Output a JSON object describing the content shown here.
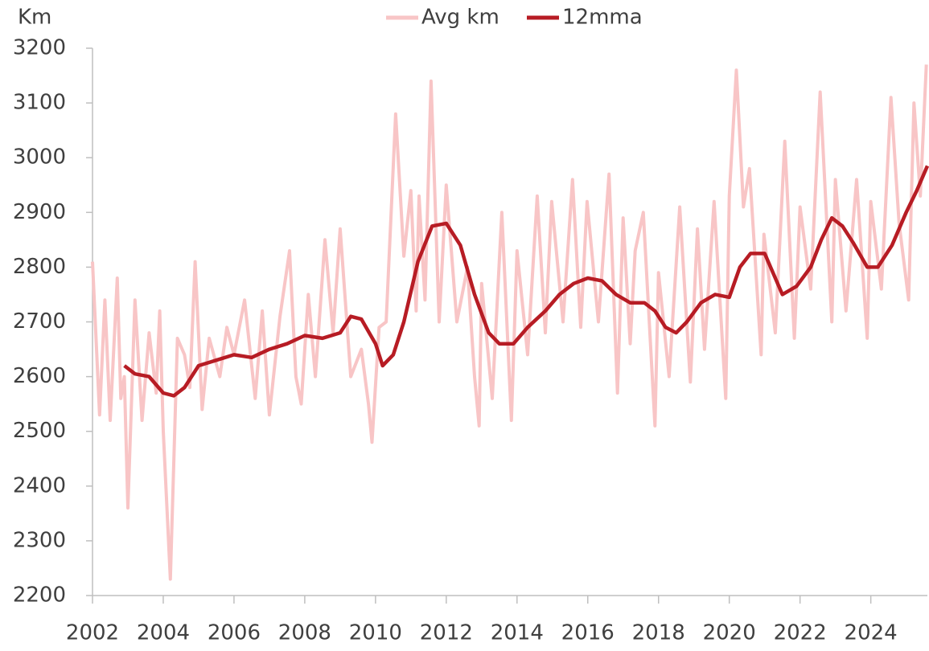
{
  "chart_data": {
    "type": "line",
    "y_label": "Km",
    "xlim": [
      2002,
      2025.6
    ],
    "xticks": [
      2002,
      2004,
      2006,
      2008,
      2010,
      2012,
      2014,
      2016,
      2018,
      2020,
      2022,
      2024
    ],
    "ylim": [
      2200,
      3200
    ],
    "yticks": [
      2200,
      2300,
      2400,
      2500,
      2600,
      2700,
      2800,
      2900,
      3000,
      3100,
      3200
    ],
    "legend": "top",
    "series": [
      {
        "name": "Avg km",
        "color": "#f8c5c6",
        "x": [
          2002.0,
          2002.2,
          2002.35,
          2002.5,
          2002.7,
          2002.8,
          2002.9,
          2003.0,
          2003.2,
          2003.4,
          2003.6,
          2003.8,
          2003.9,
          2004.0,
          2004.2,
          2004.4,
          2004.6,
          2004.75,
          2004.9,
          2005.1,
          2005.3,
          2005.6,
          2005.8,
          2006.0,
          2006.3,
          2006.6,
          2006.8,
          2007.0,
          2007.3,
          2007.57,
          2007.75,
          2007.9,
          2008.1,
          2008.3,
          2008.57,
          2008.8,
          2009.0,
          2009.3,
          2009.6,
          2009.8,
          2009.9,
          2010.1,
          2010.3,
          2010.57,
          2010.8,
          2011.0,
          2011.15,
          2011.23,
          2011.4,
          2011.57,
          2011.8,
          2012.0,
          2012.3,
          2012.6,
          2012.8,
          2012.93,
          2013.0,
          2013.3,
          2013.57,
          2013.84,
          2014.0,
          2014.3,
          2014.57,
          2014.8,
          2014.98,
          2015.3,
          2015.57,
          2015.8,
          2015.98,
          2016.3,
          2016.6,
          2016.84,
          2017.0,
          2017.2,
          2017.34,
          2017.57,
          2017.9,
          2018.0,
          2018.3,
          2018.6,
          2018.9,
          2019.1,
          2019.3,
          2019.57,
          2019.9,
          2020.0,
          2020.2,
          2020.4,
          2020.57,
          2020.9,
          2020.98,
          2021.3,
          2021.57,
          2021.84,
          2022.0,
          2022.3,
          2022.57,
          2022.9,
          2023.0,
          2023.3,
          2023.6,
          2023.9,
          2024.0,
          2024.3,
          2024.57,
          2024.8,
          2025.07,
          2025.22,
          2025.4,
          2025.57
        ],
        "values": [
          2810,
          2530,
          2740,
          2520,
          2780,
          2560,
          2600,
          2360,
          2740,
          2520,
          2680,
          2570,
          2720,
          2500,
          2230,
          2670,
          2640,
          2580,
          2810,
          2540,
          2670,
          2600,
          2690,
          2640,
          2740,
          2560,
          2720,
          2530,
          2710,
          2830,
          2600,
          2550,
          2750,
          2600,
          2850,
          2680,
          2870,
          2600,
          2650,
          2550,
          2480,
          2690,
          2700,
          3080,
          2820,
          2940,
          2720,
          2930,
          2740,
          3140,
          2700,
          2950,
          2700,
          2800,
          2600,
          2510,
          2770,
          2560,
          2900,
          2520,
          2830,
          2640,
          2930,
          2680,
          2920,
          2700,
          2960,
          2690,
          2920,
          2700,
          2970,
          2570,
          2890,
          2660,
          2830,
          2900,
          2510,
          2790,
          2600,
          2910,
          2590,
          2870,
          2650,
          2920,
          2560,
          2930,
          3160,
          2910,
          2980,
          2640,
          2860,
          2680,
          3030,
          2670,
          2910,
          2760,
          3120,
          2700,
          2960,
          2720,
          2960,
          2670,
          2920,
          2760,
          3110,
          2880,
          2740,
          3100,
          2930,
          3170
        ]
      },
      {
        "name": "12mma",
        "color": "#b71c24",
        "x": [
          2002.9,
          2003.2,
          2003.6,
          2004.0,
          2004.3,
          2004.6,
          2005.0,
          2005.5,
          2006.0,
          2006.5,
          2007.0,
          2007.5,
          2008.0,
          2008.5,
          2009.0,
          2009.3,
          2009.6,
          2010.0,
          2010.2,
          2010.5,
          2010.8,
          2011.2,
          2011.6,
          2012.0,
          2012.4,
          2012.8,
          2013.2,
          2013.5,
          2013.9,
          2014.3,
          2014.8,
          2015.2,
          2015.6,
          2016.0,
          2016.4,
          2016.8,
          2017.2,
          2017.6,
          2017.9,
          2018.2,
          2018.5,
          2018.8,
          2019.2,
          2019.6,
          2020.0,
          2020.3,
          2020.6,
          2021.0,
          2021.3,
          2021.5,
          2021.9,
          2022.3,
          2022.6,
          2022.9,
          2023.2,
          2023.5,
          2023.9,
          2024.2,
          2024.6,
          2025.0,
          2025.3,
          2025.6
        ],
        "values": [
          2620,
          2605,
          2600,
          2570,
          2565,
          2580,
          2620,
          2630,
          2640,
          2635,
          2650,
          2660,
          2675,
          2670,
          2680,
          2710,
          2705,
          2660,
          2620,
          2640,
          2700,
          2810,
          2875,
          2880,
          2840,
          2750,
          2680,
          2660,
          2660,
          2690,
          2720,
          2750,
          2770,
          2780,
          2775,
          2750,
          2735,
          2735,
          2720,
          2690,
          2680,
          2700,
          2735,
          2750,
          2745,
          2800,
          2825,
          2825,
          2780,
          2750,
          2765,
          2800,
          2850,
          2890,
          2875,
          2845,
          2800,
          2800,
          2840,
          2900,
          2940,
          2985
        ]
      }
    ]
  }
}
